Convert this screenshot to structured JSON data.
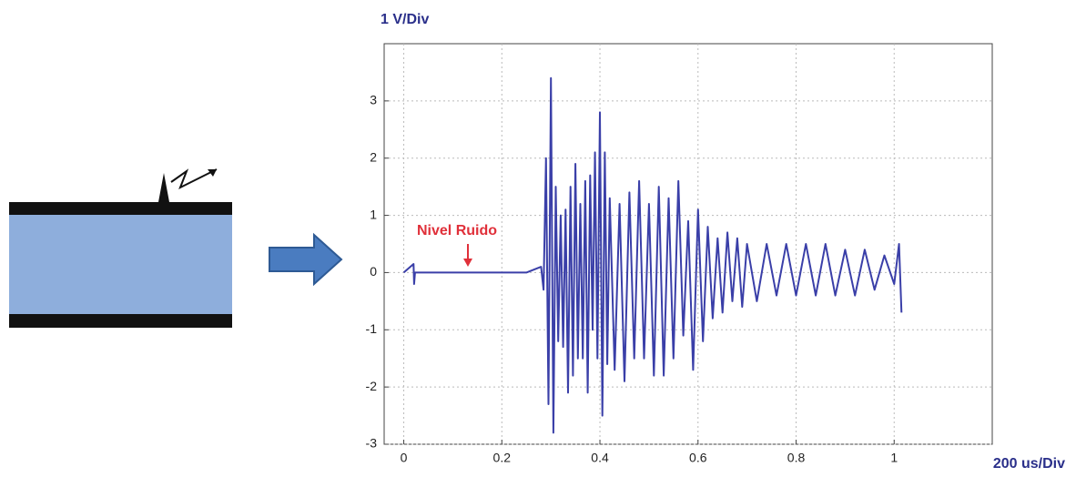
{
  "chart_data": {
    "type": "line",
    "y_label": "1 V/Div",
    "x_label": "200 us/Div",
    "annotation": "Nivel Ruido",
    "color": "#3a3fa8",
    "grid": true,
    "xlim": [
      -0.04,
      1.2
    ],
    "ylim": [
      -3,
      4
    ],
    "xticks": [
      0,
      0.2,
      0.4,
      0.6,
      0.8,
      1
    ],
    "yticks": [
      -3,
      -2,
      -1,
      0,
      1,
      2,
      3
    ],
    "x": [
      0,
      0.02,
      0.021,
      0.023,
      0.05,
      0.15,
      0.25,
      0.28,
      0.285,
      0.29,
      0.295,
      0.3,
      0.305,
      0.31,
      0.315,
      0.32,
      0.325,
      0.33,
      0.335,
      0.34,
      0.345,
      0.35,
      0.355,
      0.36,
      0.365,
      0.37,
      0.375,
      0.38,
      0.385,
      0.39,
      0.395,
      0.4,
      0.405,
      0.41,
      0.415,
      0.42,
      0.43,
      0.44,
      0.45,
      0.46,
      0.47,
      0.48,
      0.49,
      0.5,
      0.51,
      0.52,
      0.53,
      0.54,
      0.55,
      0.56,
      0.57,
      0.58,
      0.59,
      0.6,
      0.61,
      0.62,
      0.63,
      0.64,
      0.65,
      0.66,
      0.67,
      0.68,
      0.69,
      0.7,
      0.72,
      0.74,
      0.76,
      0.78,
      0.8,
      0.82,
      0.84,
      0.86,
      0.88,
      0.9,
      0.92,
      0.94,
      0.96,
      0.98,
      1.0,
      1.01,
      1.015
    ],
    "values": [
      0,
      0.15,
      -0.2,
      0,
      0,
      0,
      0,
      0.1,
      -0.3,
      2,
      -2.3,
      3.4,
      -2.8,
      1.5,
      -1.2,
      1,
      -1.3,
      1.1,
      -2.1,
      1.5,
      -1.8,
      1.9,
      -1.5,
      1.2,
      -1.5,
      1.6,
      -2.1,
      1.7,
      -1,
      2.1,
      -1.5,
      2.8,
      -2.5,
      2.1,
      -1.6,
      1.3,
      -1.7,
      1.2,
      -1.9,
      1.4,
      -1.5,
      1.6,
      -1.5,
      1.2,
      -1.8,
      1.5,
      -1.8,
      1.3,
      -1.5,
      1.6,
      -1.1,
      0.9,
      -1.7,
      1.1,
      -1.2,
      0.8,
      -0.8,
      0.6,
      -0.7,
      0.7,
      -0.5,
      0.6,
      -0.6,
      0.5,
      -0.5,
      0.5,
      -0.4,
      0.5,
      -0.4,
      0.5,
      -0.4,
      0.5,
      -0.4,
      0.4,
      -0.4,
      0.4,
      -0.3,
      0.3,
      -0.2,
      0.5,
      -0.7
    ]
  }
}
